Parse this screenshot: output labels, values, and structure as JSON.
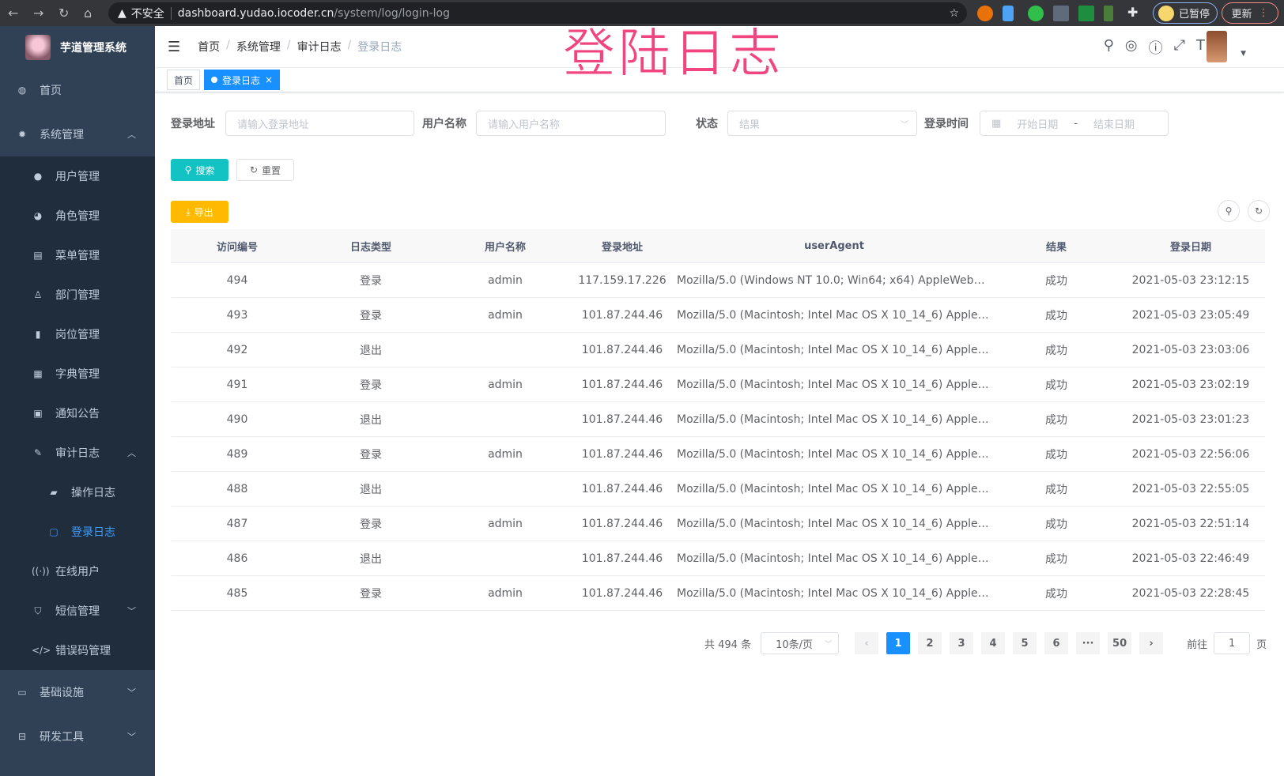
{
  "browser": {
    "security": "不安全",
    "host": "dashboard.yudao.iocoder.cn",
    "path": "/system/log/login-log",
    "paused": "已暂停",
    "update": "更新"
  },
  "overlay_title": "登陆日志",
  "sidebar": {
    "title": "芋道管理系统",
    "items": [
      {
        "label": "首页",
        "icon": "dashboard-icon"
      },
      {
        "label": "系统管理",
        "icon": "gear-icon",
        "expanded": true,
        "children": [
          {
            "label": "用户管理",
            "icon": "user-icon"
          },
          {
            "label": "角色管理",
            "icon": "peoples-icon"
          },
          {
            "label": "菜单管理",
            "icon": "tree-table-icon"
          },
          {
            "label": "部门管理",
            "icon": "tree-icon"
          },
          {
            "label": "岗位管理",
            "icon": "post-icon"
          },
          {
            "label": "字典管理",
            "icon": "dict-icon"
          },
          {
            "label": "通知公告",
            "icon": "message-icon"
          },
          {
            "label": "审计日志",
            "icon": "log-icon",
            "expanded": true,
            "children": [
              {
                "label": "操作日志",
                "icon": "form-icon"
              },
              {
                "label": "登录日志",
                "icon": "logininfor-icon",
                "active": true
              }
            ]
          },
          {
            "label": "在线用户",
            "icon": "online-icon"
          },
          {
            "label": "短信管理",
            "icon": "shield-icon",
            "expanded": false
          },
          {
            "label": "错误码管理",
            "icon": "code-icon"
          }
        ]
      },
      {
        "label": "基础设施",
        "icon": "monitor-icon",
        "expanded": false
      },
      {
        "label": "研发工具",
        "icon": "tool-icon",
        "expanded": false
      }
    ]
  },
  "header": {
    "breadcrumb": [
      "首页",
      "系统管理",
      "审计日志",
      "登录日志"
    ]
  },
  "tags": [
    {
      "label": "首页"
    },
    {
      "label": "登录日志",
      "active": true
    }
  ],
  "filters": {
    "address_label": "登录地址",
    "address_placeholder": "请输入登录地址",
    "username_label": "用户名称",
    "username_placeholder": "请输入用户名称",
    "status_label": "状态",
    "status_placeholder": "结果",
    "time_label": "登录时间",
    "start_placeholder": "开始日期",
    "range_sep": "-",
    "end_placeholder": "结束日期"
  },
  "actions": {
    "search": "搜索",
    "reset": "重置",
    "export": "导出"
  },
  "colors": {
    "primary": "#1890ff",
    "search": "#13c2c2",
    "export": "#ffba00",
    "sidebar": "#304156",
    "submenu": "#1f2d3d",
    "active": "#409eff"
  },
  "table": {
    "columns": [
      "访问编号",
      "日志类型",
      "用户名称",
      "登录地址",
      "userAgent",
      "结果",
      "登录日期"
    ],
    "rows": [
      [
        "494",
        "登录",
        "admin",
        "117.159.17.226",
        "Mozilla/5.0 (Windows NT 10.0; Win64; x64) AppleWebKit...",
        "成功",
        "2021-05-03 23:12:15"
      ],
      [
        "493",
        "登录",
        "admin",
        "101.87.244.46",
        "Mozilla/5.0 (Macintosh; Intel Mac OS X 10_14_6) AppleWe...",
        "成功",
        "2021-05-03 23:05:49"
      ],
      [
        "492",
        "退出",
        "",
        "101.87.244.46",
        "Mozilla/5.0 (Macintosh; Intel Mac OS X 10_14_6) AppleWe...",
        "成功",
        "2021-05-03 23:03:06"
      ],
      [
        "491",
        "登录",
        "admin",
        "101.87.244.46",
        "Mozilla/5.0 (Macintosh; Intel Mac OS X 10_14_6) AppleWe...",
        "成功",
        "2021-05-03 23:02:19"
      ],
      [
        "490",
        "退出",
        "",
        "101.87.244.46",
        "Mozilla/5.0 (Macintosh; Intel Mac OS X 10_14_6) AppleWe...",
        "成功",
        "2021-05-03 23:01:23"
      ],
      [
        "489",
        "登录",
        "admin",
        "101.87.244.46",
        "Mozilla/5.0 (Macintosh; Intel Mac OS X 10_14_6) AppleWe...",
        "成功",
        "2021-05-03 22:56:06"
      ],
      [
        "488",
        "退出",
        "",
        "101.87.244.46",
        "Mozilla/5.0 (Macintosh; Intel Mac OS X 10_14_6) AppleWe...",
        "成功",
        "2021-05-03 22:55:05"
      ],
      [
        "487",
        "登录",
        "admin",
        "101.87.244.46",
        "Mozilla/5.0 (Macintosh; Intel Mac OS X 10_14_6) AppleWe...",
        "成功",
        "2021-05-03 22:51:14"
      ],
      [
        "486",
        "退出",
        "",
        "101.87.244.46",
        "Mozilla/5.0 (Macintosh; Intel Mac OS X 10_14_6) AppleWe...",
        "成功",
        "2021-05-03 22:46:49"
      ],
      [
        "485",
        "登录",
        "admin",
        "101.87.244.46",
        "Mozilla/5.0 (Macintosh; Intel Mac OS X 10_14_6) AppleWe...",
        "成功",
        "2021-05-03 22:28:45"
      ]
    ]
  },
  "pagination": {
    "total": "共 494 条",
    "page_size": "10条/页",
    "pages": [
      "1",
      "2",
      "3",
      "4",
      "5",
      "6",
      "···",
      "50"
    ],
    "current": "1",
    "goto_label": "前往",
    "goto_value": "1",
    "goto_suffix": "页"
  }
}
